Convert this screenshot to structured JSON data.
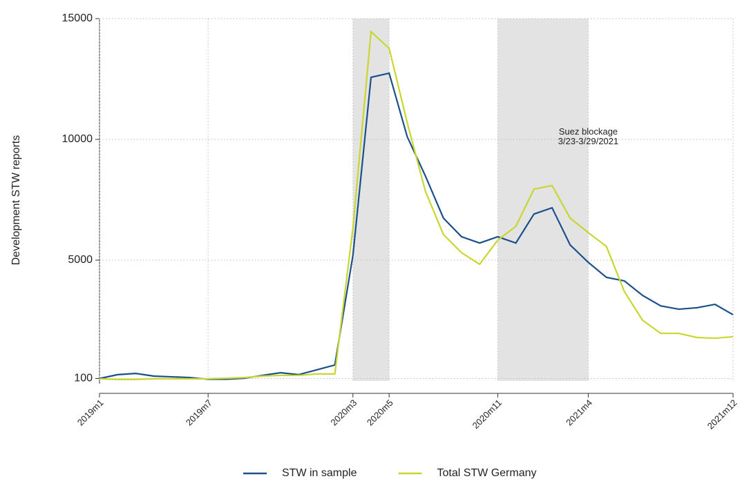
{
  "chart_data": {
    "type": "line",
    "y_label": "Development STW reports",
    "categories": [
      "2019m1",
      null,
      null,
      null,
      null,
      null,
      "2019m7",
      null,
      null,
      null,
      null,
      null,
      null,
      null,
      "2020m3",
      null,
      "2020m5",
      null,
      null,
      null,
      null,
      null,
      "2020m11",
      null,
      null,
      null,
      null,
      "2021m4",
      null,
      null,
      null,
      null,
      null,
      null,
      null,
      "2021m12"
    ],
    "series": [
      {
        "name": "STW in sample",
        "color": "#1a4f8a",
        "values": [
          100,
          260,
          310,
          200,
          170,
          140,
          70,
          70,
          110,
          230,
          340,
          260,
          460,
          660,
          5200,
          12570,
          12740,
          10110,
          8490,
          6740,
          5970,
          5710,
          5970,
          5710,
          6910,
          7170,
          5630,
          4910,
          4290,
          4140,
          3540,
          3110,
          2970,
          3030,
          3170,
          2740
        ]
      },
      {
        "name": "Total STW Germany",
        "color": "#c8d62f",
        "values": [
          90,
          60,
          60,
          90,
          90,
          90,
          90,
          110,
          140,
          200,
          230,
          230,
          290,
          290,
          6340,
          14460,
          13770,
          10690,
          7860,
          6060,
          5310,
          4830,
          5830,
          6400,
          7940,
          8090,
          6740,
          6140,
          5570,
          3690,
          2510,
          1970,
          1970,
          1800,
          1770,
          1830
        ]
      }
    ],
    "shaded_periods": [
      [
        "2020m3",
        "2020m5"
      ],
      [
        "2020m11",
        "2021m4"
      ]
    ],
    "annotation": [
      "Suez blockage",
      "3/23-3/29/2021"
    ],
    "ylim": [
      0,
      15000
    ],
    "yticks": [
      100,
      5000,
      10000,
      15000
    ],
    "grid": true,
    "legend": "bottom"
  }
}
